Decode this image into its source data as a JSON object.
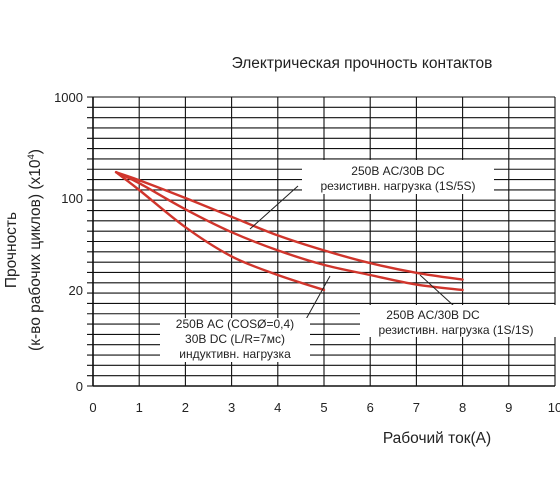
{
  "chart_data": {
    "type": "line",
    "title": "Электрическая прочность контактов",
    "xlabel": "Рабочий ток(A)",
    "ylabel_line1": "Прочность",
    "ylabel_line2": "(к-во рабочих циклов) (x10",
    "ylabel_sup": "4",
    "ylabel_close": ")",
    "x_ticks": [
      "0",
      "1",
      "2",
      "3",
      "4",
      "5",
      "6",
      "7",
      "8",
      "9",
      "10"
    ],
    "y_ticks": [
      {
        "label": "1000",
        "value": 1000
      },
      {
        "label": "100",
        "value": 100
      },
      {
        "label": "20",
        "value": 20
      },
      {
        "label": "0",
        "value": 0
      }
    ],
    "xlim": [
      0,
      10
    ],
    "grid": true,
    "colors": {
      "curve": "#d0352c",
      "grid": "#111111",
      "text": "#222222"
    },
    "series": [
      {
        "label_lines": [
          "250В AC/30В DC",
          "резистивн. нагрузка (1S/5S)"
        ],
        "points": [
          [
            0.5,
            180
          ],
          [
            1,
            150
          ],
          [
            2,
            100
          ],
          [
            3,
            72
          ],
          [
            4,
            52
          ],
          [
            5,
            40
          ],
          [
            6,
            32
          ],
          [
            7,
            27
          ],
          [
            8,
            24
          ]
        ]
      },
      {
        "label_lines": [
          "250В AC/30В DC",
          "резистивн. нагрузка (1S/1S)"
        ],
        "points": [
          [
            0.5,
            180
          ],
          [
            1,
            140
          ],
          [
            2,
            82
          ],
          [
            3,
            55
          ],
          [
            4,
            40
          ],
          [
            5,
            31
          ],
          [
            6,
            26
          ],
          [
            7,
            22
          ],
          [
            8,
            20
          ]
        ]
      },
      {
        "label_lines": [
          "250В AC (COSØ=0,4)",
          "30В DC (L/R=7мс)",
          "индуктивн. нагрузка"
        ],
        "points": [
          [
            0.5,
            180
          ],
          [
            1,
            120
          ],
          [
            2,
            60
          ],
          [
            3,
            36
          ],
          [
            4,
            26
          ],
          [
            5,
            20
          ]
        ]
      }
    ]
  }
}
